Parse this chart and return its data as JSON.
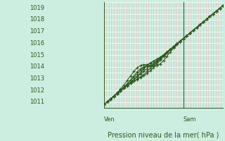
{
  "bg_color": "#cceee0",
  "grid_h_color": "#ffffff",
  "grid_v_color": "#f0b0b0",
  "line_color": "#2d5a1e",
  "axis_label_color": "#2d5a1e",
  "tick_label_color": "#2d5a1e",
  "bottom_label": "Pression niveau de la mer( hPa )",
  "xlabel_ven": "Ven",
  "xlabel_sam": "Sam",
  "ylim": [
    1010.5,
    1019.5
  ],
  "yticks": [
    1011,
    1012,
    1013,
    1014,
    1015,
    1016,
    1017,
    1018,
    1019
  ],
  "xlim": [
    0,
    48
  ],
  "sam_x": 32,
  "label_fontsize": 7,
  "tick_fontsize": 6
}
